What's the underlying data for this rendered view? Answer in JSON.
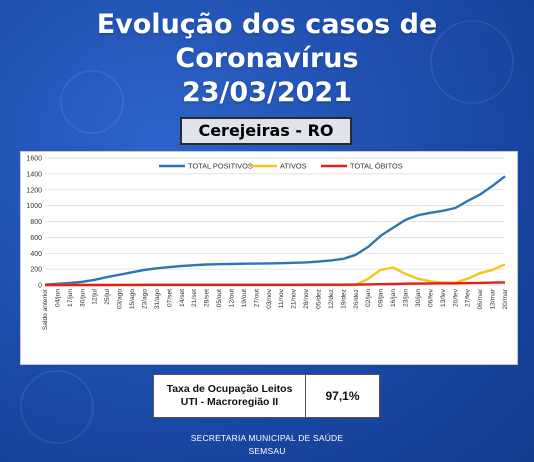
{
  "header": {
    "line1": "Evolução dos casos de",
    "line2": "Coronavírus",
    "line3": "23/03/2021",
    "location": "Cerejeiras - RO"
  },
  "uti": {
    "label_line1": "Taxa de Ocupação Leitos",
    "label_line2": "UTI - Macroregião II",
    "value": "97,1%"
  },
  "footer": {
    "line1": "SECRETARIA MUNICIPAL DE SAÚDE",
    "line2": "SEMSAU"
  },
  "chart_data": {
    "type": "line",
    "ylim": [
      0,
      1600
    ],
    "yticks": [
      0,
      200,
      400,
      600,
      800,
      1000,
      1200,
      1400,
      1600
    ],
    "grid": "horizontal",
    "legend_position": "top",
    "categories": [
      "Saldo anterior",
      "04/jun",
      "17/jun",
      "30/jun",
      "12/jul",
      "25/jul",
      "03/ago",
      "15/ago",
      "23/ago",
      "31/ago",
      "07/set",
      "14/set",
      "21/set",
      "28/set",
      "05/out",
      "12/out",
      "19/out",
      "27/out",
      "03/nov",
      "11/nov",
      "21/nov",
      "28/nov",
      "05/dez",
      "12/dez",
      "19/dez",
      "26/dez",
      "02/jan",
      "09/jan",
      "16/jan",
      "23/jan",
      "30/jan",
      "06/fev",
      "13/fev",
      "20/fev",
      "27/fev",
      "06/mar",
      "13/mar",
      "20/mar"
    ],
    "series": [
      {
        "name": "TOTAL POSITIVOS",
        "color": "#2e75b6",
        "values": [
          5,
          15,
          25,
          40,
          65,
          100,
          130,
          160,
          190,
          210,
          225,
          240,
          250,
          258,
          262,
          265,
          268,
          270,
          272,
          275,
          280,
          285,
          295,
          310,
          330,
          380,
          480,
          620,
          720,
          820,
          880,
          910,
          935,
          970,
          1060,
          1140,
          1250,
          1370
        ]
      },
      {
        "name": "ATIVOS",
        "color": "#f5c518",
        "values": [
          0,
          0,
          0,
          0,
          0,
          0,
          0,
          0,
          0,
          0,
          0,
          0,
          0,
          0,
          0,
          0,
          0,
          0,
          0,
          0,
          0,
          0,
          0,
          0,
          0,
          0,
          80,
          190,
          220,
          140,
          80,
          45,
          30,
          30,
          80,
          150,
          190,
          260
        ]
      },
      {
        "name": "TOTAL ÓBITOS",
        "color": "#e02020",
        "values": [
          0,
          0,
          0,
          0,
          0,
          0,
          1,
          1,
          2,
          2,
          2,
          3,
          3,
          3,
          3,
          3,
          3,
          3,
          3,
          3,
          3,
          4,
          4,
          4,
          4,
          5,
          7,
          10,
          13,
          16,
          18,
          20,
          21,
          22,
          24,
          27,
          30,
          33
        ]
      }
    ]
  }
}
